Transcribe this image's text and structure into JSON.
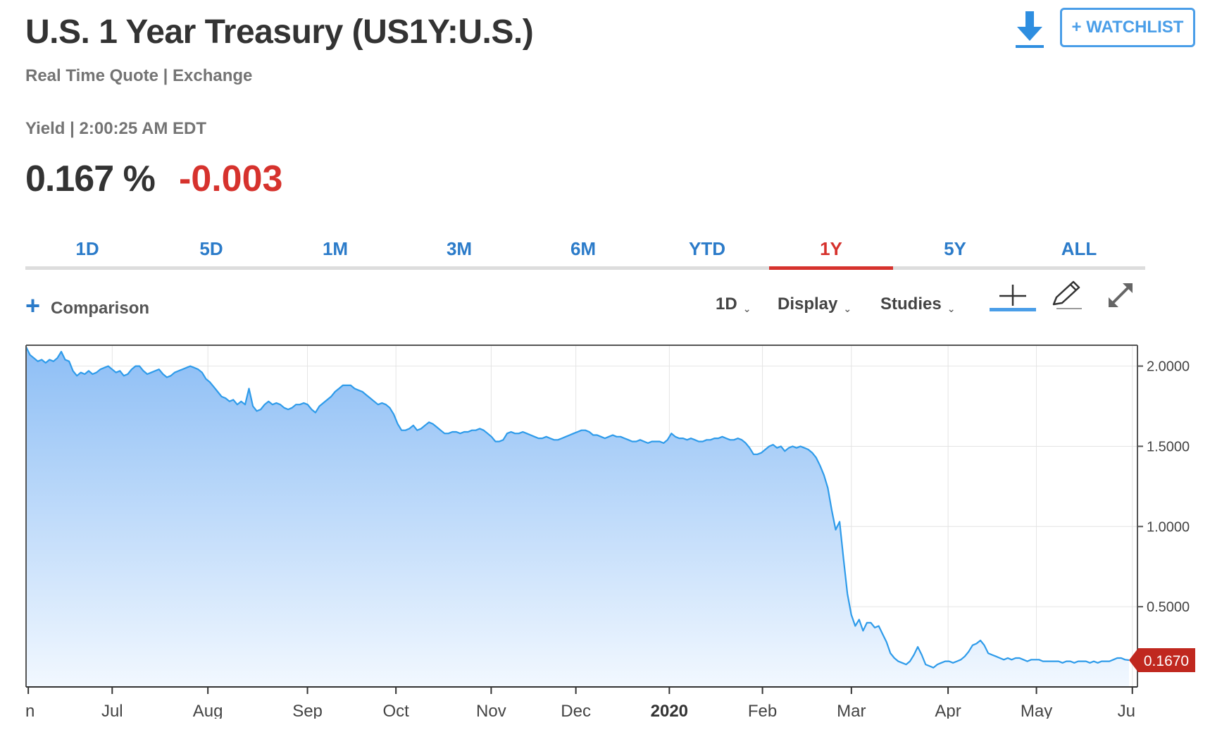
{
  "header": {
    "title": "U.S. 1 Year Treasury (US1Y:U.S.)",
    "subtitle": "Real Time Quote | Exchange",
    "yield_line": "Yield | 2:00:25 AM EDT",
    "price": "0.167 %",
    "change": "-0.003",
    "download_icon": "download-icon",
    "watchlist_label": "+ WATCHLIST",
    "colors": {
      "price": "#333333",
      "change": "#d6322d",
      "accent": "#4a9ee8"
    }
  },
  "tabs": [
    {
      "label": "1D",
      "active": false
    },
    {
      "label": "5D",
      "active": false
    },
    {
      "label": "1M",
      "active": false
    },
    {
      "label": "3M",
      "active": false
    },
    {
      "label": "6M",
      "active": false
    },
    {
      "label": "YTD",
      "active": false
    },
    {
      "label": "1Y",
      "active": true
    },
    {
      "label": "5Y",
      "active": false
    },
    {
      "label": "ALL",
      "active": false
    }
  ],
  "toolbar": {
    "comparison_label": "Comparison",
    "interval_label": "1D",
    "display_label": "Display",
    "studies_label": "Studies",
    "icons": [
      "crosshair-icon",
      "pencil-icon",
      "expand-icon"
    ]
  },
  "chart_data": {
    "type": "area",
    "title": "",
    "xlabel": "",
    "ylabel": "",
    "x_labels": [
      "Jun",
      "Jul",
      "Aug",
      "Sep",
      "Oct",
      "Nov",
      "Dec",
      "2020",
      "Feb",
      "Mar",
      "Apr",
      "May",
      "Jun"
    ],
    "y_ticks": [
      "2.0000",
      "1.5000",
      "1.0000",
      "0.5000"
    ],
    "ylim": [
      0.0,
      2.13
    ],
    "grid": true,
    "last_value_label": "0.1670",
    "colors": {
      "line": "#2e9bea",
      "fill_top": "#8dbef5",
      "fill_bottom": "#f2f8ff",
      "last_label": "#c0281f"
    },
    "series": [
      {
        "values": [
          2.12,
          2.07,
          2.05,
          2.03,
          2.04,
          2.02,
          2.04,
          2.03,
          2.05,
          2.09,
          2.04,
          2.03,
          1.97,
          1.94,
          1.96,
          1.95,
          1.97,
          1.95,
          1.96,
          1.98,
          1.99,
          2.0,
          1.98,
          1.96,
          1.97,
          1.94,
          1.95,
          1.98,
          2.0,
          2.0,
          1.97,
          1.95,
          1.96,
          1.97,
          1.98,
          1.95,
          1.93,
          1.94,
          1.96,
          1.97,
          1.98,
          1.99,
          2.0,
          1.99,
          1.98,
          1.96,
          1.92,
          1.9,
          1.87,
          1.84,
          1.81,
          1.8,
          1.78,
          1.79,
          1.76,
          1.78,
          1.76,
          1.86,
          1.75,
          1.72,
          1.73,
          1.76,
          1.78,
          1.76,
          1.77,
          1.76,
          1.74,
          1.73,
          1.74,
          1.76,
          1.76,
          1.77,
          1.76,
          1.73,
          1.71,
          1.75,
          1.77,
          1.79,
          1.81,
          1.84,
          1.86,
          1.88,
          1.88,
          1.88,
          1.86,
          1.85,
          1.84,
          1.82,
          1.8,
          1.78,
          1.76,
          1.77,
          1.76,
          1.74,
          1.7,
          1.64,
          1.6,
          1.6,
          1.61,
          1.63,
          1.6,
          1.61,
          1.63,
          1.65,
          1.64,
          1.62,
          1.6,
          1.58,
          1.58,
          1.59,
          1.59,
          1.58,
          1.59,
          1.59,
          1.6,
          1.6,
          1.61,
          1.6,
          1.58,
          1.56,
          1.53,
          1.53,
          1.54,
          1.58,
          1.59,
          1.58,
          1.58,
          1.59,
          1.58,
          1.57,
          1.56,
          1.55,
          1.55,
          1.56,
          1.55,
          1.54,
          1.54,
          1.55,
          1.56,
          1.57,
          1.58,
          1.59,
          1.6,
          1.6,
          1.59,
          1.57,
          1.57,
          1.56,
          1.55,
          1.56,
          1.57,
          1.56,
          1.56,
          1.55,
          1.54,
          1.53,
          1.53,
          1.54,
          1.53,
          1.52,
          1.53,
          1.53,
          1.53,
          1.52,
          1.54,
          1.58,
          1.56,
          1.55,
          1.55,
          1.54,
          1.55,
          1.54,
          1.53,
          1.53,
          1.54,
          1.54,
          1.55,
          1.55,
          1.56,
          1.55,
          1.54,
          1.54,
          1.55,
          1.54,
          1.52,
          1.49,
          1.45,
          1.45,
          1.46,
          1.48,
          1.5,
          1.51,
          1.49,
          1.5,
          1.47,
          1.49,
          1.5,
          1.49,
          1.5,
          1.49,
          1.48,
          1.46,
          1.43,
          1.38,
          1.32,
          1.24,
          1.1,
          0.98,
          1.03,
          0.8,
          0.58,
          0.45,
          0.38,
          0.42,
          0.35,
          0.4,
          0.4,
          0.37,
          0.38,
          0.33,
          0.28,
          0.21,
          0.18,
          0.16,
          0.15,
          0.14,
          0.16,
          0.2,
          0.25,
          0.2,
          0.14,
          0.13,
          0.12,
          0.14,
          0.15,
          0.16,
          0.16,
          0.15,
          0.16,
          0.17,
          0.19,
          0.22,
          0.26,
          0.27,
          0.29,
          0.26,
          0.21,
          0.2,
          0.19,
          0.18,
          0.17,
          0.18,
          0.17,
          0.18,
          0.18,
          0.17,
          0.16,
          0.17,
          0.17,
          0.17,
          0.16,
          0.16,
          0.16,
          0.16,
          0.16,
          0.15,
          0.16,
          0.16,
          0.15,
          0.16,
          0.16,
          0.16,
          0.15,
          0.16,
          0.15,
          0.16,
          0.16,
          0.16,
          0.17,
          0.18,
          0.18,
          0.17,
          0.167
        ]
      }
    ]
  }
}
